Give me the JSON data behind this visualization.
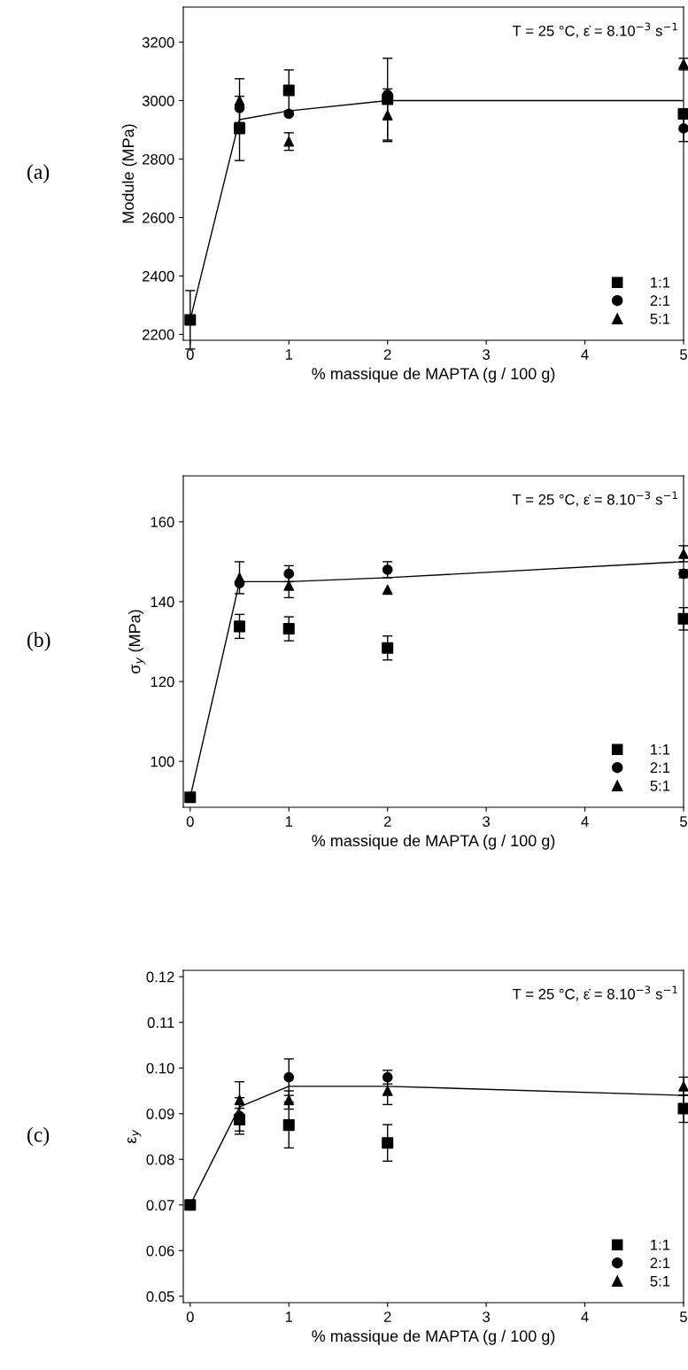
{
  "chart_data": [
    {
      "type": "scatter",
      "ylabel": "Module (MPa)",
      "xlabel": "% massique de MAPTA (g / 100 g)",
      "annotations": [
        "(a)",
        "T = 25 °C, ε̇ = 8.10$^{−3}$ s$^{−1}$"
      ],
      "xlim": [
        -0.07,
        5.0
      ],
      "xticks": [
        0,
        1,
        2,
        3,
        4,
        5
      ],
      "ylim": [
        2180,
        3320
      ],
      "yticks": [
        2200,
        2400,
        2600,
        2800,
        3000,
        3200
      ],
      "grid": false,
      "legend": "bottom right",
      "series": [
        {
          "type": "line",
          "color": "#000000",
          "marker": "none",
          "x": [
            0,
            0.5,
            1,
            2,
            5
          ],
          "values": [
            2250,
            2935,
            2965,
            3000,
            3000
          ]
        },
        {
          "name": "1:1",
          "color": "#000000",
          "marker": "square",
          "x": [
            0,
            0.5,
            1,
            2,
            5
          ],
          "values": [
            2250,
            2905,
            3035,
            3005,
            2955
          ],
          "errors": [
            100,
            110,
            70,
            140,
            null
          ]
        },
        {
          "name": "2:1",
          "color": "#000000",
          "marker": "circle",
          "x": [
            0.5,
            1,
            2,
            5
          ],
          "values": [
            2975,
            2955,
            3020,
            2905
          ],
          "errors": [
            null,
            null,
            null,
            45
          ]
        },
        {
          "name": "5:1",
          "color": "#000000",
          "marker": "triangle",
          "x": [
            0.5,
            1,
            2,
            5
          ],
          "values": [
            3000,
            2860,
            2950,
            3125
          ],
          "errors": [
            75,
            30,
            90,
            20
          ]
        }
      ]
    },
    {
      "type": "scatter",
      "ylabel": "σ$_{y}$ (MPa)",
      "xlabel": "% massique de MAPTA (g / 100 g)",
      "annotations": [
        "(b)",
        "T = 25 °C, ε̇ = 8.10$^{−3}$ s$^{−1}$"
      ],
      "xlim": [
        -0.07,
        5.0
      ],
      "xticks": [
        0,
        1,
        2,
        3,
        4,
        5
      ],
      "ylim": [
        88.5,
        171.5
      ],
      "yticks": [
        100,
        120,
        140,
        160
      ],
      "grid": false,
      "legend": "bottom right",
      "series": [
        {
          "type": "line",
          "color": "#000000",
          "marker": "none",
          "x": [
            0,
            0.5,
            1,
            2,
            5
          ],
          "values": [
            91,
            145,
            145,
            146,
            150
          ]
        },
        {
          "name": "1:1",
          "color": "#000000",
          "marker": "square",
          "x": [
            0,
            0.5,
            1,
            2,
            5
          ],
          "values": [
            91,
            133.8,
            133.2,
            128.4,
            135.7
          ],
          "errors": [
            null,
            3,
            3,
            3,
            2.8
          ]
        },
        {
          "name": "2:1",
          "color": "#000000",
          "marker": "circle",
          "x": [
            0.5,
            1,
            2,
            5
          ],
          "values": [
            144.6,
            147,
            148,
            147
          ],
          "errors": [
            null,
            2,
            2,
            1
          ]
        },
        {
          "name": "5:1",
          "color": "#000000",
          "marker": "triangle",
          "x": [
            0.5,
            1,
            2,
            5
          ],
          "values": [
            146,
            144,
            143,
            152
          ],
          "errors": [
            4,
            3,
            null,
            2
          ]
        }
      ]
    },
    {
      "type": "scatter",
      "ylabel": "ε$_{y}$",
      "xlabel": "% massique de MAPTA (g / 100 g)",
      "annotations": [
        "(c)",
        "T = 25 °C, ε̇ = 8.10$^{−3}$ s$^{−1}$"
      ],
      "xlim": [
        -0.07,
        5.0
      ],
      "xticks": [
        0,
        1,
        2,
        3,
        4,
        5
      ],
      "ylim": [
        0.0486,
        0.1214
      ],
      "yticks": [
        0.05,
        0.06,
        0.07,
        0.08,
        0.09,
        {
          "value": 0.1,
          "label": "0.10"
        },
        0.11,
        0.12
      ],
      "grid": false,
      "legend": "bottom right",
      "series": [
        {
          "type": "line",
          "color": "#000000",
          "marker": "none",
          "x": [
            0,
            0.5,
            1,
            2,
            5
          ],
          "values": [
            0.07,
            0.0915,
            0.096,
            0.096,
            0.094
          ]
        },
        {
          "name": "1:1",
          "color": "#000000",
          "marker": "square",
          "x": [
            0,
            0.5,
            1,
            2,
            5
          ],
          "values": [
            0.07,
            0.0887,
            0.0875,
            0.0836,
            0.0911
          ],
          "errors": [
            null,
            0.0025,
            0.005,
            0.004,
            0.003
          ]
        },
        {
          "name": "2:1",
          "color": "#000000",
          "marker": "circle",
          "x": [
            0.5,
            1,
            2
          ],
          "values": [
            0.0895,
            0.098,
            0.098
          ],
          "errors": [
            0.004,
            0.004,
            0.0015
          ]
        },
        {
          "name": "5:1",
          "color": "#000000",
          "marker": "triangle",
          "x": [
            0.5,
            1,
            2,
            5
          ],
          "values": [
            0.093,
            0.093,
            0.095,
            0.096
          ],
          "errors": [
            0.004,
            0.002,
            0.003,
            0.002
          ]
        }
      ]
    }
  ]
}
